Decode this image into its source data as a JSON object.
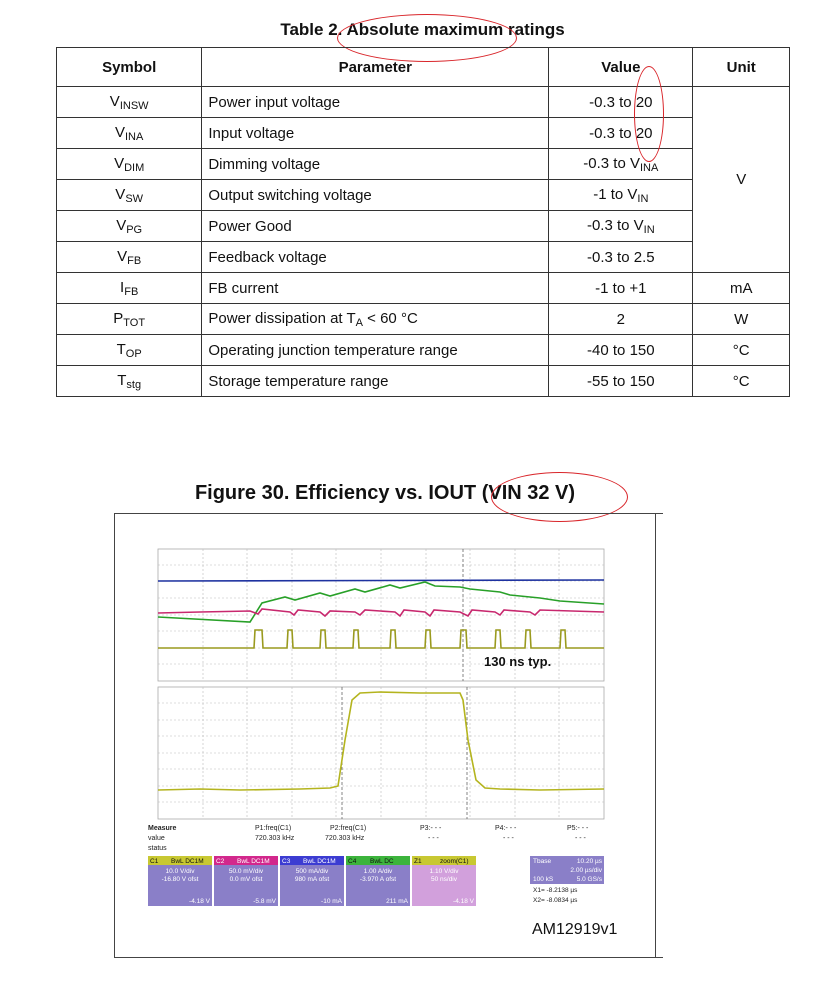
{
  "table": {
    "title": "Table 2. Absolute maximum ratings",
    "headers": {
      "symbol": "Symbol",
      "parameter": "Parameter",
      "value": "Value",
      "unit": "Unit"
    },
    "rows": [
      {
        "sym": "V",
        "sub": "INSW",
        "param": "Power input voltage",
        "value": "-0.3 to 20"
      },
      {
        "sym": "V",
        "sub": "INA",
        "param": "Input voltage",
        "value": "-0.3 to 20"
      },
      {
        "sym": "V",
        "sub": "DIM",
        "param": "Dimming voltage",
        "value_main": "-0.3 to V",
        "value_sub": "INA"
      },
      {
        "sym": "V",
        "sub": "SW",
        "param": "Output switching voltage",
        "value_main": "-1 to V",
        "value_sub": "IN"
      },
      {
        "sym": "V",
        "sub": "PG",
        "param": "Power Good",
        "value_main": "-0.3 to V",
        "value_sub": "IN"
      },
      {
        "sym": "V",
        "sub": "FB",
        "param": "Feedback voltage",
        "value": "-0.3 to 2.5"
      },
      {
        "sym": "I",
        "sub": "FB",
        "param": "FB current",
        "value": "-1 to +1",
        "unit": "mA"
      },
      {
        "sym": "P",
        "sub": "TOT",
        "param_main": "Power dissipation at T",
        "param_sub": "A",
        "param_tail": " < 60 °C",
        "value": "2",
        "unit": "W"
      },
      {
        "sym": "T",
        "sub": "OP",
        "param": "Operating junction temperature range",
        "value": "-40 to 150",
        "unit": "°C"
      },
      {
        "sym": "T",
        "sub": "stg",
        "param": "Storage temperature range",
        "value": "-55 to 150",
        "unit": "°C"
      }
    ],
    "merged_unit": "V"
  },
  "figure": {
    "title": "Figure 30. Efficiency vs. IOUT (VIN 32 V)",
    "annotation": "130 ns typ.",
    "code": "AM12919v1",
    "measure": {
      "labels": [
        "Measure",
        "value",
        "status"
      ],
      "params": [
        {
          "name": "P1:freq(C1)",
          "value": "720.303 kHz"
        },
        {
          "name": "P2:freq(C1)",
          "value": "720.303 kHz"
        },
        {
          "name": "P3:- - -",
          "value": "- - -"
        },
        {
          "name": "P4:- - -",
          "value": "- - -"
        },
        {
          "name": "P5:- - -",
          "value": "- - -"
        }
      ]
    },
    "channels": [
      {
        "id": "C1",
        "mode": "BwL DC1M",
        "line1": "10.0 V/div",
        "line2": "-16.80 V ofst",
        "delta": "-4.18 V",
        "color": "#c8c832"
      },
      {
        "id": "C2",
        "mode": "BwL DC1M",
        "line1": "50.0 mV/div",
        "line2": "0.0 mV ofst",
        "delta": "-5.8 mV",
        "color": "#d2288c"
      },
      {
        "id": "C3",
        "mode": "BwL DC1M",
        "line1": "500 mA/div",
        "line2": "980 mA ofst",
        "delta": "-10 mA",
        "color": "#3c3cd2"
      },
      {
        "id": "C4",
        "mode": "BwL DC",
        "line1": "1.00 A/div",
        "line2": "-3.970 A ofst",
        "delta": "211 mA",
        "color": "#3cb43c"
      },
      {
        "id": "Z1",
        "mode": "zoom(C1)",
        "line1": "1.10 V/div",
        "line2": "50 ns/div",
        "delta": "-4.18 V",
        "color": "#c8c832"
      }
    ],
    "timebase": {
      "label": "Tbase",
      "value": "10.20 µs",
      "div": "2.00 µs/div",
      "samples": "100 kS",
      "rate": "5.0 GS/s",
      "x1": "X1= -8.2138 µs",
      "x2": "X2= -8.0834 µs"
    },
    "colors": {
      "c1": "#b4b41e",
      "c2": "#c8286e",
      "c3": "#1e32a0",
      "c4": "#28a028",
      "grid": "#bbbbbb",
      "oval": "#d9262b"
    }
  }
}
